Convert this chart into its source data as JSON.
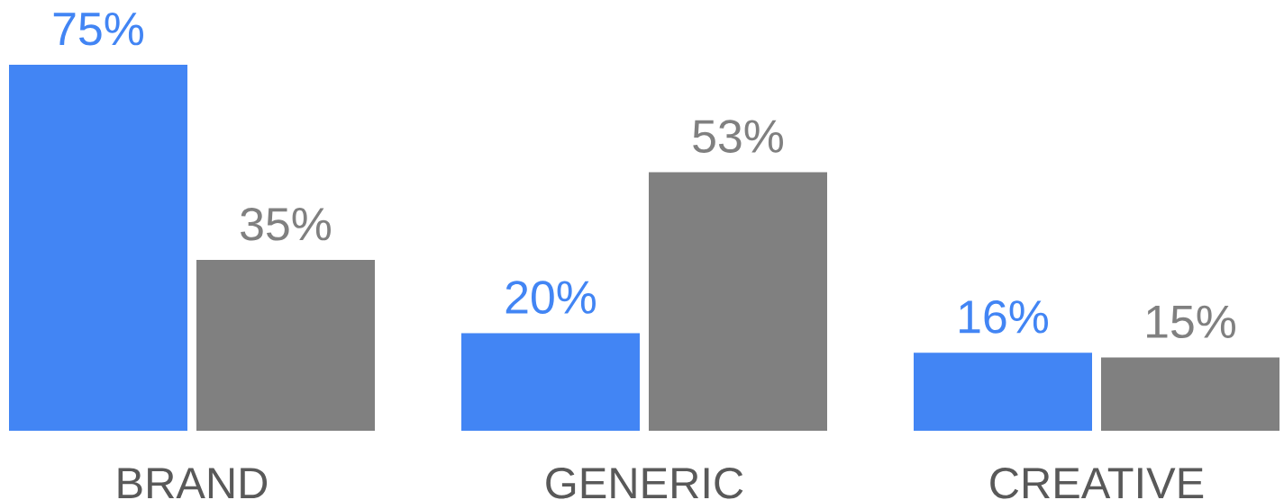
{
  "chart_data": {
    "type": "bar",
    "categories": [
      "BRAND",
      "GENERIC",
      "CREATIVE"
    ],
    "series": [
      {
        "color": "#4285f4",
        "values": [
          75,
          20,
          16
        ],
        "value_labels": [
          "75%",
          "20%",
          "16%"
        ]
      },
      {
        "color": "#808080",
        "values": [
          35,
          53,
          15
        ],
        "value_labels": [
          "35%",
          "53%",
          "15%"
        ]
      }
    ]
  }
}
